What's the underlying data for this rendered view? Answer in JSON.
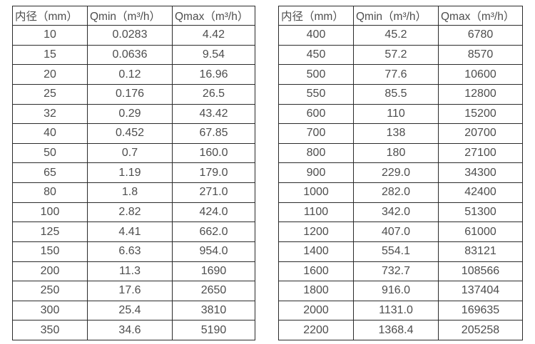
{
  "colors": {
    "background": "#ffffff",
    "border": "#2b2b2b",
    "text": "#4d4d4d"
  },
  "chart_data": [
    {
      "type": "table",
      "title": "",
      "columns": [
        "内径（mm）",
        "Qmin（m³/h）",
        "Qmax（m³/h）"
      ],
      "rows": [
        [
          "10",
          "0.0283",
          "4.42"
        ],
        [
          "15",
          "0.0636",
          "9.54"
        ],
        [
          "20",
          "0.12",
          "16.96"
        ],
        [
          "25",
          "0.176",
          "26.5"
        ],
        [
          "32",
          "0.29",
          "43.42"
        ],
        [
          "40",
          "0.452",
          "67.85"
        ],
        [
          "50",
          "0.7",
          "160.0"
        ],
        [
          "65",
          "1.19",
          "179.0"
        ],
        [
          "80",
          "1.8",
          "271.0"
        ],
        [
          "100",
          "2.82",
          "424.0"
        ],
        [
          "125",
          "4.41",
          "662.0"
        ],
        [
          "150",
          "6.63",
          "954.0"
        ],
        [
          "200",
          "11.3",
          "1690"
        ],
        [
          "250",
          "17.6",
          "2650"
        ],
        [
          "300",
          "25.4",
          "3810"
        ],
        [
          "350",
          "34.6",
          "5190"
        ]
      ]
    },
    {
      "type": "table",
      "title": "",
      "columns": [
        "内径（mm）",
        "Qmin（m³/h）",
        "Qmax（m³/h）"
      ],
      "rows": [
        [
          "400",
          "45.2",
          "6780"
        ],
        [
          "450",
          "57.2",
          "8570"
        ],
        [
          "500",
          "77.6",
          "10600"
        ],
        [
          "550",
          "85.5",
          "12800"
        ],
        [
          "600",
          "110",
          "15200"
        ],
        [
          "700",
          "138",
          "20700"
        ],
        [
          "800",
          "180",
          "27100"
        ],
        [
          "900",
          "229.0",
          "34300"
        ],
        [
          "1000",
          "282.0",
          "42400"
        ],
        [
          "1100",
          "342.0",
          "51300"
        ],
        [
          "1200",
          "407.0",
          "61000"
        ],
        [
          "1400",
          "554.1",
          "83121"
        ],
        [
          "1600",
          "732.7",
          "108566"
        ],
        [
          "1800",
          "916.0",
          "137404"
        ],
        [
          "2000",
          "1131.0",
          "169635"
        ],
        [
          "2200",
          "1368.4",
          "205258"
        ]
      ]
    }
  ]
}
